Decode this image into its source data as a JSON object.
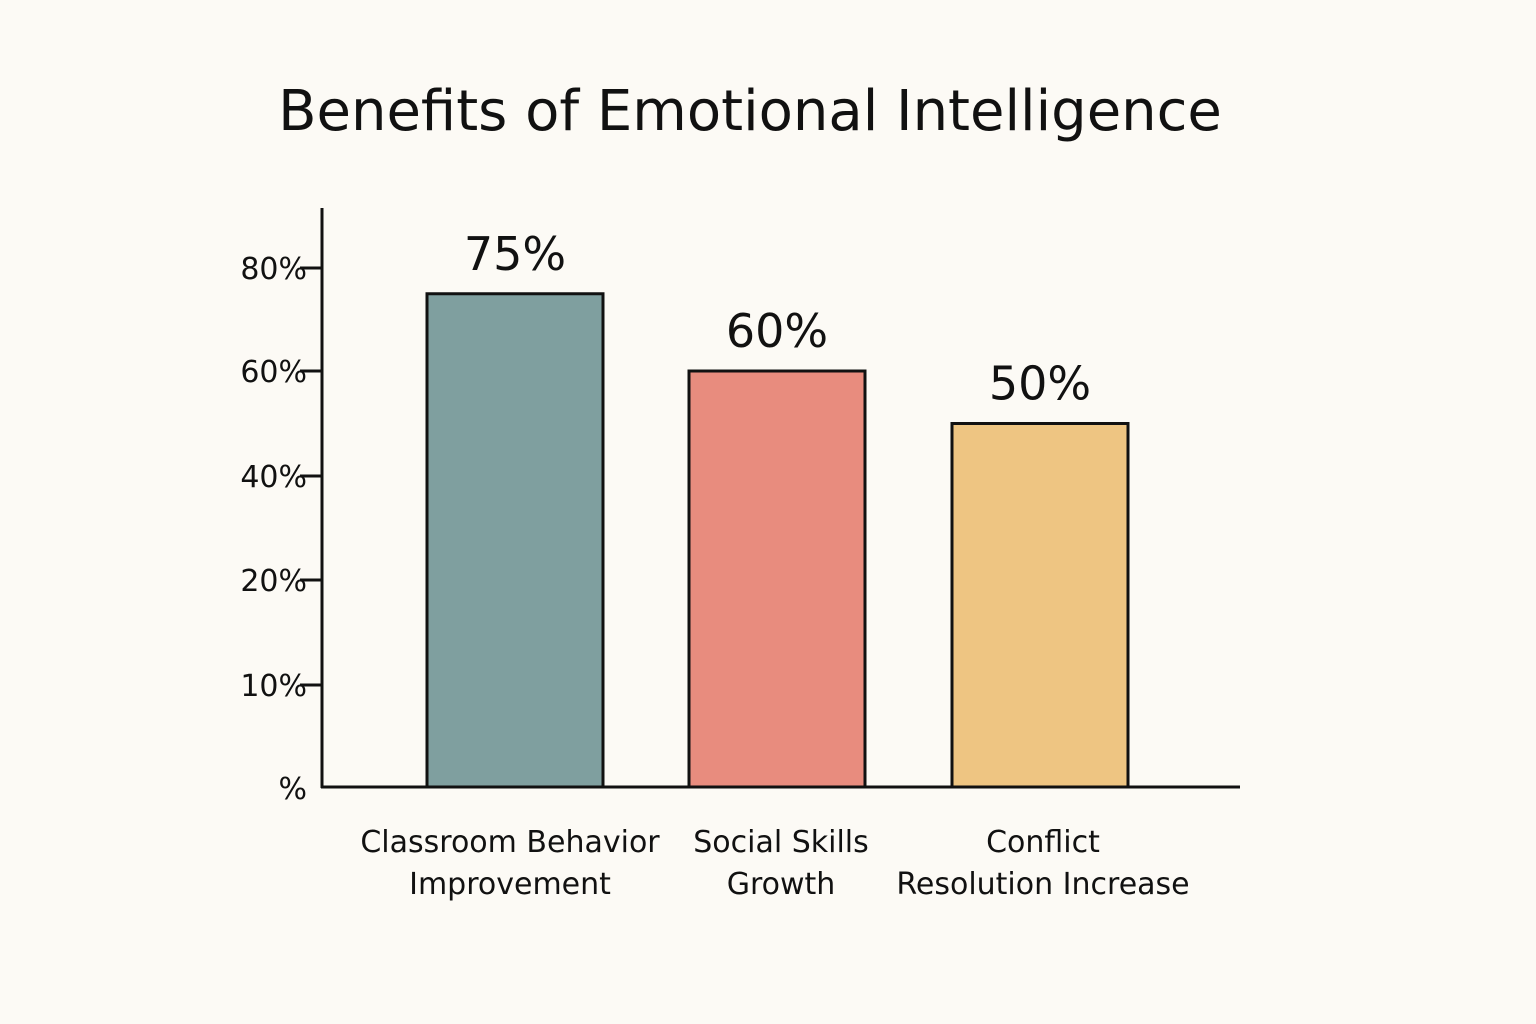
{
  "chart_data": {
    "type": "bar",
    "title": "Benefits of Emotional Intelligence",
    "xlabel": "",
    "ylabel": "",
    "categories": [
      [
        "Classroom Behavior",
        "Improvement"
      ],
      [
        "Social Skills",
        "Growth"
      ],
      [
        "Conflict",
        "Resolution Increase"
      ]
    ],
    "values": [
      75,
      60,
      50
    ],
    "value_labels": [
      "75%",
      "60%",
      "50%"
    ],
    "y_ticks": [
      {
        "value": 0,
        "label": "%"
      },
      {
        "value": 10,
        "label": "10%"
      },
      {
        "value": 20,
        "label": "20%"
      },
      {
        "value": 40,
        "label": "40%"
      },
      {
        "value": 60,
        "label": "60%"
      },
      {
        "value": 80,
        "label": "80%"
      }
    ],
    "ylim": [
      0,
      90
    ],
    "grid": false,
    "legend": "none",
    "colors": [
      "#7f9f9f",
      "#e88c7e",
      "#eec582"
    ],
    "outline_color": "#111111"
  }
}
